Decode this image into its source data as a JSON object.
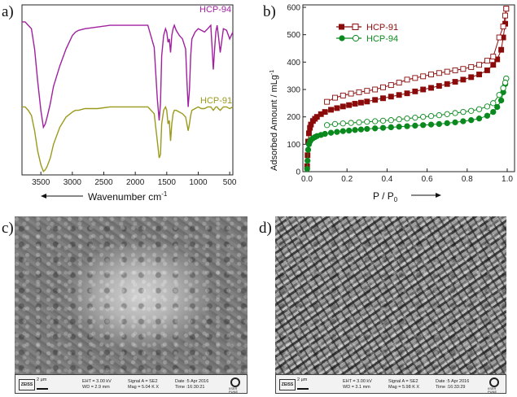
{
  "panel_labels": {
    "a": "a)",
    "b": "b)",
    "c": "c)",
    "d": "d)"
  },
  "chart_data": [
    {
      "type": "line",
      "panel": "a",
      "xlabel": "Wavenumber cm",
      "xlabel_superscript": "-1",
      "ylabel": "",
      "xlim": [
        3800,
        450
      ],
      "x_reversed": true,
      "xticks": [
        3500,
        3000,
        2500,
        2000,
        1500,
        1000,
        500
      ],
      "yticks": [],
      "grid": false,
      "series": [
        {
          "name": "HCP-94",
          "color": "#a020a0",
          "x": [
            3800,
            3750,
            3700,
            3650,
            3600,
            3550,
            3500,
            3460,
            3430,
            3400,
            3350,
            3300,
            3200,
            3100,
            3000,
            2950,
            2900,
            2800,
            2600,
            2400,
            2200,
            2000,
            1950,
            1800,
            1700,
            1650,
            1620,
            1600,
            1580,
            1550,
            1520,
            1500,
            1480,
            1460,
            1440,
            1420,
            1400,
            1380,
            1350,
            1300,
            1250,
            1200,
            1180,
            1160,
            1140,
            1120,
            1100,
            1050,
            1000,
            950,
            900,
            850,
            800,
            780,
            760,
            740,
            720,
            700,
            680,
            650,
            600,
            550,
            500,
            450
          ],
          "y": [
            0.9,
            0.9,
            0.88,
            0.86,
            0.74,
            0.55,
            0.38,
            0.28,
            0.3,
            0.34,
            0.42,
            0.52,
            0.64,
            0.74,
            0.82,
            0.84,
            0.85,
            0.86,
            0.87,
            0.88,
            0.88,
            0.88,
            0.88,
            0.88,
            0.75,
            0.45,
            0.32,
            0.42,
            0.7,
            0.82,
            0.86,
            0.84,
            0.78,
            0.8,
            0.72,
            0.82,
            0.86,
            0.88,
            0.85,
            0.82,
            0.8,
            0.74,
            0.55,
            0.4,
            0.5,
            0.7,
            0.8,
            0.84,
            0.86,
            0.85,
            0.84,
            0.86,
            0.88,
            0.75,
            0.62,
            0.74,
            0.84,
            0.88,
            0.82,
            0.72,
            0.86,
            0.85,
            0.8,
            0.84
          ]
        },
        {
          "name": "HCP-91",
          "color": "#9a9a1c",
          "x": [
            3800,
            3750,
            3700,
            3650,
            3600,
            3550,
            3500,
            3460,
            3430,
            3400,
            3350,
            3300,
            3200,
            3100,
            3000,
            2950,
            2900,
            2800,
            2600,
            2400,
            2200,
            2000,
            1950,
            1800,
            1700,
            1650,
            1620,
            1600,
            1580,
            1550,
            1520,
            1500,
            1480,
            1460,
            1440,
            1420,
            1400,
            1380,
            1350,
            1300,
            1250,
            1200,
            1180,
            1160,
            1140,
            1120,
            1100,
            1050,
            1000,
            950,
            900,
            850,
            800,
            780,
            760,
            740,
            720,
            700,
            680,
            650,
            600,
            550,
            500,
            450
          ],
          "y": [
            0.4,
            0.4,
            0.38,
            0.35,
            0.26,
            0.14,
            0.06,
            0.02,
            0.03,
            0.05,
            0.1,
            0.18,
            0.28,
            0.34,
            0.37,
            0.38,
            0.38,
            0.39,
            0.39,
            0.4,
            0.4,
            0.4,
            0.4,
            0.4,
            0.36,
            0.2,
            0.1,
            0.12,
            0.3,
            0.38,
            0.4,
            0.38,
            0.3,
            0.32,
            0.2,
            0.3,
            0.36,
            0.38,
            0.38,
            0.37,
            0.36,
            0.34,
            0.3,
            0.26,
            0.3,
            0.35,
            0.38,
            0.39,
            0.4,
            0.39,
            0.39,
            0.4,
            0.4,
            0.39,
            0.38,
            0.39,
            0.4,
            0.4,
            0.39,
            0.38,
            0.4,
            0.4,
            0.39,
            0.4
          ]
        }
      ]
    },
    {
      "type": "scatter",
      "panel": "b",
      "xlabel": "P / P",
      "xlabel_subscript": "0",
      "ylabel": "Adsorbed Amount / mLg",
      "ylabel_superscript": "-1",
      "xlim": [
        0,
        1.0
      ],
      "ylim": [
        0,
        600
      ],
      "xticks": [
        0.0,
        0.2,
        0.4,
        0.6,
        0.8,
        1.0
      ],
      "yticks": [
        0,
        100,
        200,
        300,
        400,
        500,
        600
      ],
      "grid": false,
      "legend_position": "top-left",
      "series": [
        {
          "name": "HCP-91",
          "color": "#8b0a0a",
          "marker": "square",
          "adsorption": {
            "x": [
              0.001,
              0.003,
              0.006,
              0.01,
              0.015,
              0.02,
              0.03,
              0.04,
              0.05,
              0.07,
              0.09,
              0.12,
              0.15,
              0.18,
              0.21,
              0.24,
              0.27,
              0.3,
              0.34,
              0.38,
              0.42,
              0.46,
              0.5,
              0.54,
              0.58,
              0.62,
              0.66,
              0.7,
              0.74,
              0.78,
              0.82,
              0.86,
              0.9,
              0.93,
              0.95,
              0.97,
              0.98,
              0.99,
              0.995
            ],
            "y": [
              20,
              60,
              110,
              140,
              160,
              172,
              185,
              193,
              200,
              210,
              218,
              226,
              232,
              238,
              243,
              248,
              252,
              256,
              262,
              268,
              274,
              280,
              286,
              293,
              300,
              306,
              313,
              320,
              328,
              336,
              345,
              355,
              370,
              390,
              410,
              445,
              490,
              540,
              595
            ]
          },
          "desorption": {
            "x": [
              0.995,
              0.99,
              0.98,
              0.96,
              0.93,
              0.9,
              0.86,
              0.82,
              0.78,
              0.74,
              0.7,
              0.66,
              0.62,
              0.58,
              0.54,
              0.5,
              0.46,
              0.42,
              0.38,
              0.34,
              0.3,
              0.26,
              0.22,
              0.18,
              0.14,
              0.1
            ],
            "y": [
              595,
              570,
              530,
              490,
              420,
              405,
              390,
              382,
              375,
              370,
              365,
              360,
              355,
              348,
              342,
              336,
              325,
              316,
              308,
              300,
              295,
              290,
              285,
              278,
              270,
              255
            ]
          }
        },
        {
          "name": "HCP-94",
          "color": "#0a8a1e",
          "marker": "circle",
          "adsorption": {
            "x": [
              0.001,
              0.003,
              0.006,
              0.01,
              0.015,
              0.02,
              0.03,
              0.04,
              0.05,
              0.07,
              0.09,
              0.12,
              0.15,
              0.18,
              0.21,
              0.24,
              0.27,
              0.3,
              0.34,
              0.38,
              0.42,
              0.46,
              0.5,
              0.54,
              0.58,
              0.62,
              0.66,
              0.7,
              0.74,
              0.78,
              0.82,
              0.86,
              0.9,
              0.93,
              0.95,
              0.97,
              0.98,
              0.99,
              0.995
            ],
            "y": [
              10,
              40,
              80,
              100,
              110,
              116,
              122,
              126,
              130,
              134,
              138,
              142,
              145,
              148,
              150,
              152,
              154,
              156,
              158,
              160,
              162,
              164,
              166,
              168,
              170,
              172,
              174,
              177,
              180,
              184,
              188,
              194,
              204,
              218,
              236,
              260,
              290,
              320,
              340
            ]
          },
          "desorption": {
            "x": [
              0.995,
              0.99,
              0.98,
              0.96,
              0.93,
              0.9,
              0.86,
              0.82,
              0.78,
              0.74,
              0.7,
              0.66,
              0.62,
              0.58,
              0.54,
              0.5,
              0.46,
              0.42,
              0.38,
              0.34,
              0.3,
              0.26,
              0.22,
              0.18,
              0.14,
              0.1
            ],
            "y": [
              340,
              325,
              305,
              280,
              250,
              238,
              228,
              222,
              218,
              214,
              210,
              206,
              203,
              200,
              197,
              194,
              191,
              188,
              186,
              184,
              182,
              180,
              178,
              176,
              174,
              170
            ]
          }
        }
      ]
    }
  ],
  "sem": {
    "c": {
      "scale": "2 µm",
      "brand": "ZEISS",
      "eht": "EHT = 3.00 kV",
      "wd": "WD = 2.9 mm",
      "signal": "Signal A = SE2",
      "mag": "Mag = 5.04 K X",
      "date": "Date :5 Apr 2016",
      "time": "Time :16:30:21",
      "logo": "IISER PUNE"
    },
    "d": {
      "scale": "2 µm",
      "brand": "ZEISS",
      "eht": "EHT = 3.00 kV",
      "wd": "WD = 3.1 mm",
      "signal": "Signal A = SE2",
      "mag": "Mag = 5.98 K X",
      "date": "Date :5 Apr 2016",
      "time": "Time :16:33:29",
      "logo": "IISER PUNE"
    }
  }
}
